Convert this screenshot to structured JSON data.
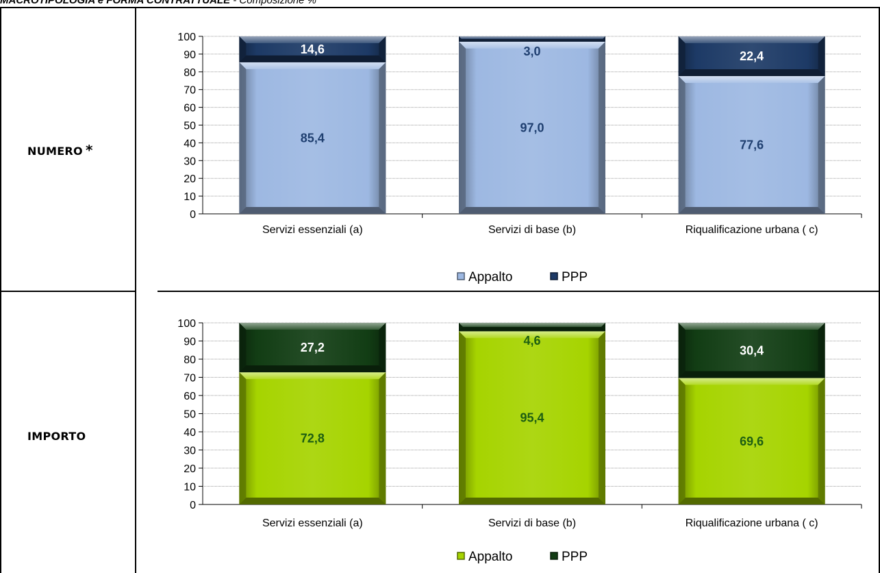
{
  "header": {
    "title": "MACROTIPOLOGIA e FORMA CONTRATTUALE",
    "subtitle": "- Composizione %"
  },
  "rows": {
    "numero": {
      "label": "NUMERO",
      "marker": "*"
    },
    "importo": {
      "label": "IMPORTO"
    }
  },
  "chart_data": [
    {
      "type": "bar",
      "stacked": true,
      "categories": [
        "Servizi essenziali (a)",
        "Servizi di base (b)",
        "Riqualificazione urbana ( c)"
      ],
      "series": [
        {
          "name": "Appalto",
          "values": [
            85.4,
            97.0,
            77.6
          ],
          "labels": [
            "85,4",
            "97,0",
            "77,6"
          ]
        },
        {
          "name": "PPP",
          "values": [
            14.6,
            3.0,
            22.4
          ],
          "labels": [
            "14,6",
            "3,0",
            "22,4"
          ]
        }
      ],
      "y_ticks": [
        "0",
        "10",
        "20",
        "30",
        "40",
        "50",
        "60",
        "70",
        "80",
        "90",
        "100"
      ],
      "ylim": [
        0,
        100
      ],
      "grid": true,
      "legend_position": "bottom",
      "colors": {
        "Appalto": "#9db8e2",
        "PPP": "#1d3a66",
        "label_appalto": "#1f3f70",
        "label_ppp": "#ffffff"
      }
    },
    {
      "type": "bar",
      "stacked": true,
      "categories": [
        "Servizi essenziali (a)",
        "Servizi di base (b)",
        "Riqualificazione urbana ( c)"
      ],
      "series": [
        {
          "name": "Appalto",
          "values": [
            72.8,
            95.4,
            69.6
          ],
          "labels": [
            "72,8",
            "95,4",
            "69,6"
          ]
        },
        {
          "name": "PPP",
          "values": [
            27.2,
            4.6,
            30.4
          ],
          "labels": [
            "27,2",
            "4,6",
            "30,4"
          ]
        }
      ],
      "y_ticks": [
        "0",
        "10",
        "20",
        "30",
        "40",
        "50",
        "60",
        "70",
        "80",
        "90",
        "100"
      ],
      "ylim": [
        0,
        100
      ],
      "grid": true,
      "legend_position": "bottom",
      "colors": {
        "Appalto": "#a6d400",
        "PPP": "#123d14",
        "label_appalto": "#1d5e12",
        "label_ppp": "#ffffff"
      }
    }
  ]
}
